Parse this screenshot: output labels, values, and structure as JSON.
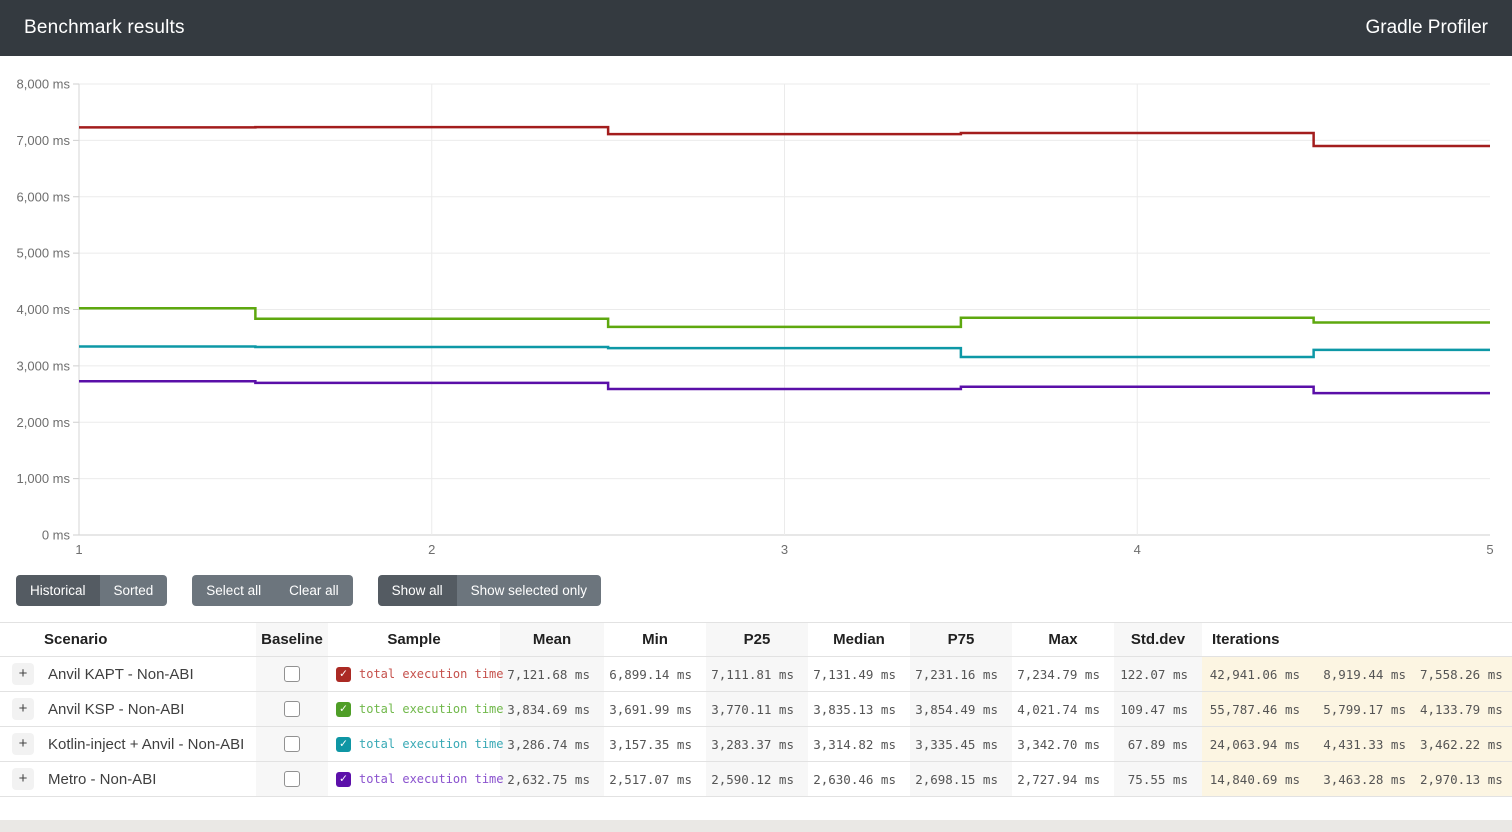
{
  "header": {
    "title": "Benchmark results",
    "app_name": "Gradle Profiler"
  },
  "chart_data": {
    "type": "line",
    "line_style": "step",
    "title": "",
    "xlabel": "",
    "ylabel": "",
    "x": [
      1,
      2,
      3,
      4,
      5
    ],
    "xticks": [
      "1",
      "2",
      "3",
      "4",
      "5"
    ],
    "ylim": [
      0,
      8000
    ],
    "ytick_step": 1000,
    "yticks": [
      "0 ms",
      "1,000 ms",
      "2,000 ms",
      "3,000 ms",
      "4,000 ms",
      "5,000 ms",
      "6,000 ms",
      "7,000 ms",
      "8,000 ms"
    ],
    "grid": true,
    "legend_position": "in-table",
    "series": [
      {
        "name": "Anvil KAPT - Non-ABI — total execution time",
        "color": "#a31d1d",
        "values": [
          7231.16,
          7234.79,
          7111.81,
          7131.49,
          6899.14
        ]
      },
      {
        "name": "Anvil KSP - Non-ABI — total execution time",
        "color": "#5ea80f",
        "values": [
          4021.74,
          3835.13,
          3691.99,
          3854.49,
          3770.11
        ]
      },
      {
        "name": "Kotlin-inject + Anvil - Non-ABI — total execution time",
        "color": "#0d98a6",
        "values": [
          3342.7,
          3335.45,
          3314.82,
          3157.35,
          3283.37
        ]
      },
      {
        "name": "Metro - Non-ABI — total execution time",
        "color": "#5a0fa8",
        "values": [
          2727.94,
          2698.15,
          2590.12,
          2630.46,
          2517.07
        ]
      }
    ]
  },
  "controls": {
    "historical": "Historical",
    "sorted": "Sorted",
    "select_all": "Select all",
    "clear_all": "Clear all",
    "show_all": "Show all",
    "show_selected_only": "Show selected only"
  },
  "table": {
    "columns": [
      "Scenario",
      "Baseline",
      "Sample",
      "Mean",
      "Min",
      "P25",
      "Median",
      "P75",
      "Max",
      "Std.dev",
      "Iterations"
    ],
    "expand_symbol": "+",
    "check_symbol": "✓",
    "rows": [
      {
        "scenario": "Anvil KAPT - Non-ABI",
        "baseline_checked": false,
        "sample": {
          "label": "total execution time",
          "box_color": "#ab2a24",
          "text_color": "#c5504b"
        },
        "mean": "7,121.68 ms",
        "min": "6,899.14 ms",
        "p25": "7,111.81 ms",
        "median": "7,131.49 ms",
        "p75": "7,231.16 ms",
        "max": "7,234.79 ms",
        "stddev": "122.07 ms",
        "iterations": [
          "42,941.06 ms",
          "8,919.44 ms",
          "7,558.26 ms"
        ]
      },
      {
        "scenario": "Anvil KSP - Non-ABI",
        "baseline_checked": false,
        "sample": {
          "label": "total execution time",
          "box_color": "#4f9e27",
          "text_color": "#70b84a"
        },
        "mean": "3,834.69 ms",
        "min": "3,691.99 ms",
        "p25": "3,770.11 ms",
        "median": "3,835.13 ms",
        "p75": "3,854.49 ms",
        "max": "4,021.74 ms",
        "stddev": "109.47 ms",
        "iterations": [
          "55,787.46 ms",
          "5,799.17 ms",
          "4,133.79 ms"
        ]
      },
      {
        "scenario": "Kotlin-inject + Anvil - Non-ABI",
        "baseline_checked": false,
        "sample": {
          "label": "total execution time",
          "box_color": "#0f96a4",
          "text_color": "#38a9b5"
        },
        "mean": "3,286.74 ms",
        "min": "3,157.35 ms",
        "p25": "3,283.37 ms",
        "median": "3,314.82 ms",
        "p75": "3,335.45 ms",
        "max": "3,342.70 ms",
        "stddev": "67.89 ms",
        "iterations": [
          "24,063.94 ms",
          "4,431.33 ms",
          "3,462.22 ms"
        ]
      },
      {
        "scenario": "Metro - Non-ABI",
        "baseline_checked": false,
        "sample": {
          "label": "total execution time",
          "box_color": "#5c10aa",
          "text_color": "#8a52ce"
        },
        "mean": "2,632.75 ms",
        "min": "2,517.07 ms",
        "p25": "2,590.12 ms",
        "median": "2,630.46 ms",
        "p75": "2,698.15 ms",
        "max": "2,727.94 ms",
        "stddev": "75.55 ms",
        "iterations": [
          "14,840.69 ms",
          "3,463.28 ms",
          "2,970.13 ms"
        ]
      }
    ]
  }
}
